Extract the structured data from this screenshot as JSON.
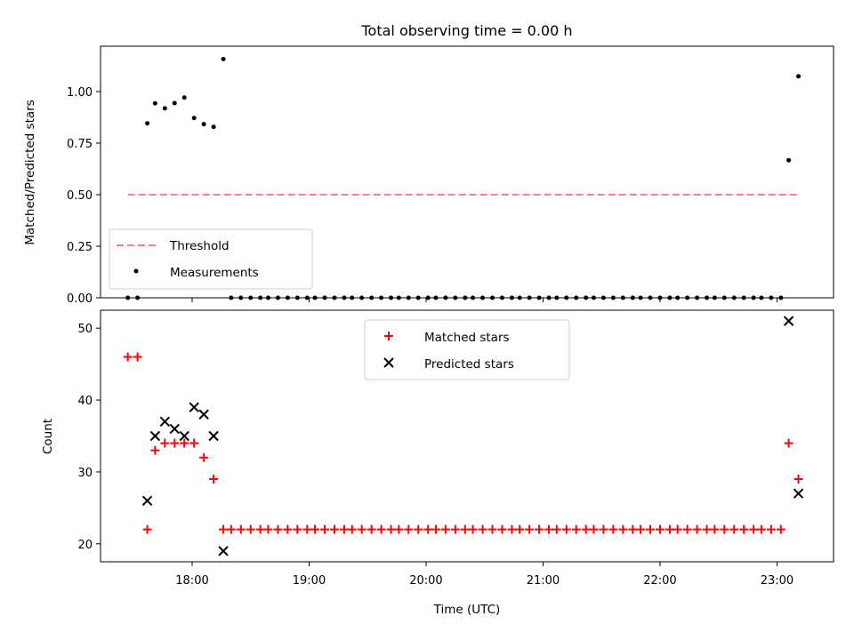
{
  "chart_data": [
    {
      "type": "scatter",
      "title": "Total observing time = 0.00 h",
      "xlabel": "",
      "ylabel": "Matched/Predicted stars",
      "xlim": [
        "17:13",
        "23:29"
      ],
      "ylim": [
        0,
        1.22
      ],
      "x_ticks": [
        "18:00",
        "19:00",
        "20:00",
        "21:00",
        "22:00",
        "23:00"
      ],
      "y_ticks": [
        "0.00",
        "0.25",
        "0.50",
        "0.75",
        "1.00"
      ],
      "tick_labels_shown": {
        "x": false,
        "y": true
      },
      "legend": {
        "placement": "lower-left"
      },
      "series": [
        {
          "name": "Threshold",
          "style": "dashed-line",
          "color": "#ff7f7f",
          "points": [
            [
              "17:27",
              0.5
            ],
            [
              "23:11",
              0.5
            ]
          ]
        },
        {
          "name": "Measurements",
          "style": "dot",
          "color": "#000000",
          "points": [
            [
              "17:27",
              0.0
            ],
            [
              "17:32",
              0.0
            ],
            [
              "17:37",
              0.846
            ],
            [
              "17:41",
              0.943
            ],
            [
              "17:46",
              0.919
            ],
            [
              "17:51",
              0.944
            ],
            [
              "17:56",
              0.971
            ],
            [
              "18:01",
              0.872
            ],
            [
              "18:06",
              0.842
            ],
            [
              "18:11",
              0.829
            ],
            [
              "18:16",
              1.158
            ],
            [
              "18:20",
              0.0
            ],
            [
              "18:25",
              0.0
            ],
            [
              "18:30",
              0.0
            ],
            [
              "18:35",
              0.0
            ],
            [
              "18:39",
              0.0
            ],
            [
              "18:44",
              0.0
            ],
            [
              "18:49",
              0.0
            ],
            [
              "18:54",
              0.0
            ],
            [
              "18:59",
              0.0
            ],
            [
              "19:03",
              0.0
            ],
            [
              "19:08",
              0.0
            ],
            [
              "19:13",
              0.0
            ],
            [
              "19:18",
              0.0
            ],
            [
              "19:22",
              0.0
            ],
            [
              "19:27",
              0.0
            ],
            [
              "19:32",
              0.0
            ],
            [
              "19:37",
              0.0
            ],
            [
              "19:42",
              0.0
            ],
            [
              "19:46",
              0.0
            ],
            [
              "19:51",
              0.0
            ],
            [
              "19:56",
              0.0
            ],
            [
              "20:01",
              0.0
            ],
            [
              "20:05",
              0.0
            ],
            [
              "20:10",
              0.0
            ],
            [
              "20:15",
              0.0
            ],
            [
              "20:20",
              0.0
            ],
            [
              "20:24",
              0.0
            ],
            [
              "20:29",
              0.0
            ],
            [
              "20:34",
              0.0
            ],
            [
              "20:39",
              0.0
            ],
            [
              "20:44",
              0.0
            ],
            [
              "20:48",
              0.0
            ],
            [
              "20:53",
              0.0
            ],
            [
              "20:58",
              0.0
            ],
            [
              "21:03",
              0.0
            ],
            [
              "21:07",
              0.0
            ],
            [
              "21:12",
              0.0
            ],
            [
              "21:17",
              0.0
            ],
            [
              "21:22",
              0.0
            ],
            [
              "21:26",
              0.0
            ],
            [
              "21:31",
              0.0
            ],
            [
              "21:36",
              0.0
            ],
            [
              "21:41",
              0.0
            ],
            [
              "21:46",
              0.0
            ],
            [
              "21:50",
              0.0
            ],
            [
              "21:55",
              0.0
            ],
            [
              "22:00",
              0.0
            ],
            [
              "22:05",
              0.0
            ],
            [
              "22:09",
              0.0
            ],
            [
              "22:14",
              0.0
            ],
            [
              "22:19",
              0.0
            ],
            [
              "22:24",
              0.0
            ],
            [
              "22:28",
              0.0
            ],
            [
              "22:33",
              0.0
            ],
            [
              "22:38",
              0.0
            ],
            [
              "22:43",
              0.0
            ],
            [
              "22:48",
              0.0
            ],
            [
              "22:52",
              0.0
            ],
            [
              "22:57",
              0.0
            ],
            [
              "23:02",
              0.0
            ],
            [
              "23:06",
              0.667
            ],
            [
              "23:11",
              1.074
            ]
          ]
        }
      ]
    },
    {
      "type": "scatter",
      "title": "",
      "xlabel": "Time (UTC)",
      "ylabel": "Count",
      "xlim": [
        "17:13",
        "23:29"
      ],
      "ylim": [
        17.5,
        52.5
      ],
      "x_ticks": [
        "18:00",
        "19:00",
        "20:00",
        "21:00",
        "22:00",
        "23:00"
      ],
      "y_ticks": [
        "20",
        "30",
        "40",
        "50"
      ],
      "tick_labels_shown": {
        "x": true,
        "y": true
      },
      "legend": {
        "placement": "upper-center"
      },
      "series": [
        {
          "name": "Matched stars",
          "marker": "plus",
          "color": "#ff0000",
          "points": [
            [
              "17:27",
              46
            ],
            [
              "17:32",
              46
            ],
            [
              "17:37",
              22
            ],
            [
              "17:41",
              33
            ],
            [
              "17:46",
              34
            ],
            [
              "17:51",
              34
            ],
            [
              "17:56",
              34
            ],
            [
              "18:01",
              34
            ],
            [
              "18:06",
              32
            ],
            [
              "18:11",
              29
            ],
            [
              "18:16",
              22
            ],
            [
              "18:20",
              22
            ],
            [
              "18:25",
              22
            ],
            [
              "18:30",
              22
            ],
            [
              "18:35",
              22
            ],
            [
              "18:39",
              22
            ],
            [
              "18:44",
              22
            ],
            [
              "18:49",
              22
            ],
            [
              "18:54",
              22
            ],
            [
              "18:59",
              22
            ],
            [
              "19:03",
              22
            ],
            [
              "19:08",
              22
            ],
            [
              "19:13",
              22
            ],
            [
              "19:18",
              22
            ],
            [
              "19:22",
              22
            ],
            [
              "19:27",
              22
            ],
            [
              "19:32",
              22
            ],
            [
              "19:37",
              22
            ],
            [
              "19:42",
              22
            ],
            [
              "19:46",
              22
            ],
            [
              "19:51",
              22
            ],
            [
              "19:56",
              22
            ],
            [
              "20:01",
              22
            ],
            [
              "20:05",
              22
            ],
            [
              "20:10",
              22
            ],
            [
              "20:15",
              22
            ],
            [
              "20:20",
              22
            ],
            [
              "20:24",
              22
            ],
            [
              "20:29",
              22
            ],
            [
              "20:34",
              22
            ],
            [
              "20:39",
              22
            ],
            [
              "20:44",
              22
            ],
            [
              "20:48",
              22
            ],
            [
              "20:53",
              22
            ],
            [
              "20:58",
              22
            ],
            [
              "21:03",
              22
            ],
            [
              "21:07",
              22
            ],
            [
              "21:12",
              22
            ],
            [
              "21:17",
              22
            ],
            [
              "21:22",
              22
            ],
            [
              "21:26",
              22
            ],
            [
              "21:31",
              22
            ],
            [
              "21:36",
              22
            ],
            [
              "21:41",
              22
            ],
            [
              "21:46",
              22
            ],
            [
              "21:50",
              22
            ],
            [
              "21:55",
              22
            ],
            [
              "22:00",
              22
            ],
            [
              "22:05",
              22
            ],
            [
              "22:09",
              22
            ],
            [
              "22:14",
              22
            ],
            [
              "22:19",
              22
            ],
            [
              "22:24",
              22
            ],
            [
              "22:28",
              22
            ],
            [
              "22:33",
              22
            ],
            [
              "22:38",
              22
            ],
            [
              "22:43",
              22
            ],
            [
              "22:48",
              22
            ],
            [
              "22:52",
              22
            ],
            [
              "22:57",
              22
            ],
            [
              "23:02",
              22
            ],
            [
              "23:06",
              34
            ],
            [
              "23:11",
              29
            ]
          ]
        },
        {
          "name": "Predicted stars",
          "marker": "x",
          "color": "#000000",
          "points": [
            [
              "17:37",
              26
            ],
            [
              "17:41",
              35
            ],
            [
              "17:46",
              37
            ],
            [
              "17:51",
              36
            ],
            [
              "17:56",
              35
            ],
            [
              "18:01",
              39
            ],
            [
              "18:06",
              38
            ],
            [
              "18:11",
              35
            ],
            [
              "18:16",
              19
            ],
            [
              "23:06",
              51
            ],
            [
              "23:11",
              27
            ]
          ]
        }
      ]
    }
  ]
}
